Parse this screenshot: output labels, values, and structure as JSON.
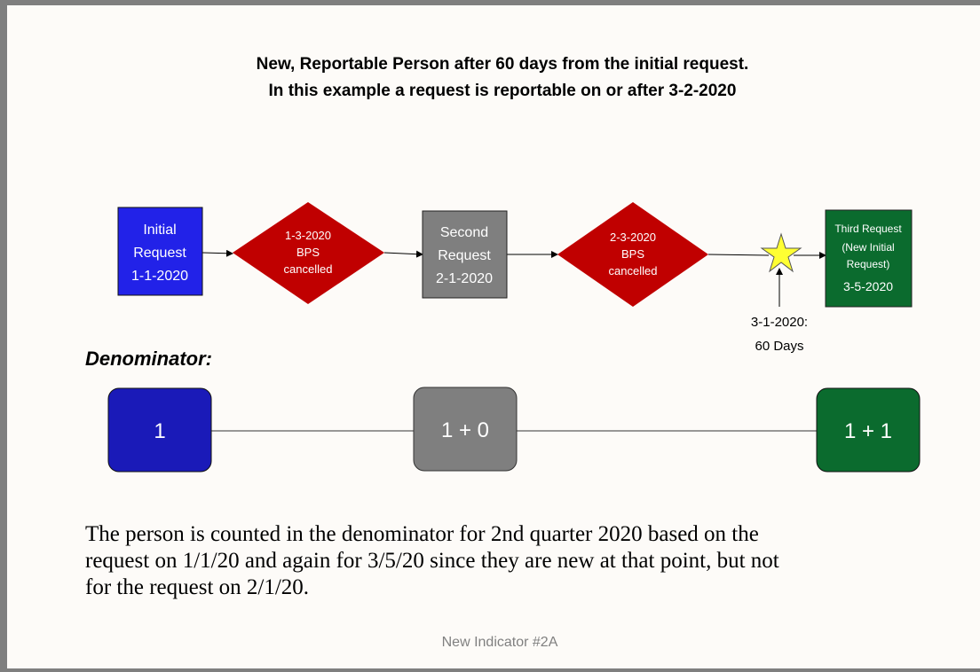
{
  "title": [
    "New, Reportable Person after 60 days from the initial request.",
    "In this example a request is reportable on or after 3-2-2020"
  ],
  "flow": {
    "nodes": [
      {
        "lines": [
          "Initial",
          "Request",
          "1-1-2020"
        ]
      },
      {
        "lines": [
          "1-3-2020",
          "BPS",
          "cancelled"
        ]
      },
      {
        "lines": [
          "Second",
          "Request",
          "2-1-2020"
        ]
      },
      {
        "lines": [
          "2-3-2020",
          "BPS",
          "cancelled"
        ]
      },
      {
        "lines": [
          "Third Request",
          "(New Initial",
          "Request)",
          "3-5-2020"
        ]
      }
    ],
    "marker": {
      "lines": [
        "3-1-2020:",
        "60 Days"
      ]
    }
  },
  "denominator": {
    "heading": "Denominator:",
    "boxes": [
      "1",
      "1 + 0",
      "1 + 1"
    ]
  },
  "note": [
    "The person is counted in the denominator for 2nd quarter 2020 based on the",
    "request on 1/1/20 and again for 3/5/20 since they are new at that point, but not",
    "for the request on 2/1/20."
  ],
  "footer": "New Indicator #2A"
}
